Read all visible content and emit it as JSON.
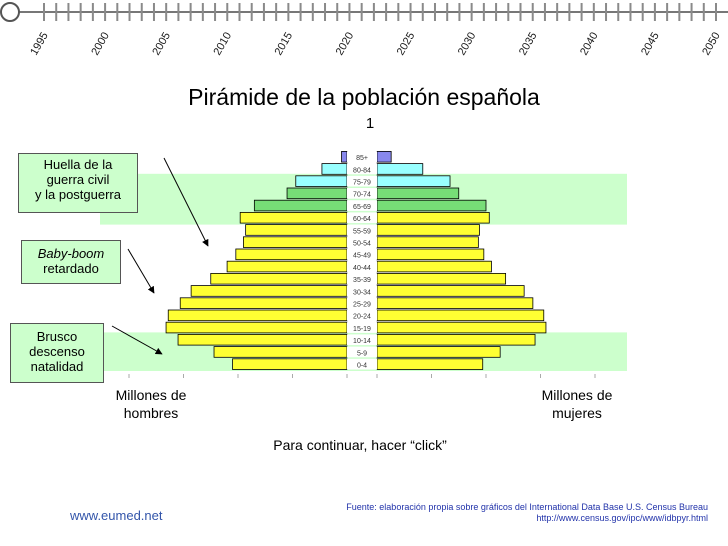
{
  "timeline": {
    "years": [
      "1995",
      "2000",
      "2005",
      "2010",
      "2015",
      "2020",
      "2025",
      "2030",
      "2035",
      "2040",
      "2045",
      "2050"
    ]
  },
  "title": "Pirámide de la población española",
  "frame_number": "1",
  "annotations": {
    "war": [
      "Huella de la",
      "guerra civil",
      "y la postguerra"
    ],
    "baby_boom_1": "Baby-boom",
    "baby_boom_2": "retardado",
    "drop": [
      "Brusco",
      "descenso",
      "natalidad"
    ]
  },
  "axis": {
    "men_label_1": "Millones de",
    "men_label_2": "hombres",
    "women_label_1": "Millones de",
    "women_label_2": "mujeres"
  },
  "continue_text": "Para continuar, hacer “click”",
  "site": "www.eumed.net",
  "source_line_1": "Fuente: elaboración propia sobre gráficos del International Data Base U.S. Census Bureau",
  "source_line_2": "http://www.census.gov/ipc/www/idbpyr.html",
  "colors": {
    "band_fill": "#ccffcc",
    "group_85": "#8888ee",
    "group_75": "#99ffff",
    "group_65": "#77dd77",
    "group_young": "#ffff33",
    "timeline_line": "#777777",
    "timeline_dot": "#ffffff"
  },
  "chart_data": {
    "type": "bar",
    "orientation": "horizontal-mirrored",
    "categories": [
      "0-4",
      "5-9",
      "10-14",
      "15-19",
      "20-24",
      "25-29",
      "30-34",
      "35-39",
      "40-44",
      "45-49",
      "50-54",
      "55-59",
      "60-64",
      "65-69",
      "70-74",
      "75-79",
      "80-84",
      "85+"
    ],
    "series": [
      {
        "name": "Millones de hombres",
        "values": [
          1.05,
          1.22,
          1.55,
          1.66,
          1.64,
          1.53,
          1.43,
          1.25,
          1.1,
          1.02,
          0.95,
          0.93,
          0.98,
          0.85,
          0.55,
          0.47,
          0.23,
          0.05
        ]
      },
      {
        "name": "Millones de mujeres",
        "values": [
          0.97,
          1.13,
          1.45,
          1.55,
          1.53,
          1.43,
          1.35,
          1.18,
          1.05,
          0.98,
          0.93,
          0.94,
          1.03,
          1.0,
          0.75,
          0.67,
          0.42,
          0.13
        ]
      }
    ],
    "group_color_by_age": [
      "young",
      "young",
      "young",
      "young",
      "young",
      "young",
      "young",
      "young",
      "young",
      "young",
      "young",
      "young",
      "young",
      "65",
      "65",
      "75",
      "75",
      "85"
    ],
    "highlight_bands": [
      {
        "from": "75-79",
        "to": "60-64"
      },
      {
        "from": "10-14",
        "to": "0-4"
      }
    ],
    "xlim_millions": [
      0,
      2.0
    ]
  }
}
